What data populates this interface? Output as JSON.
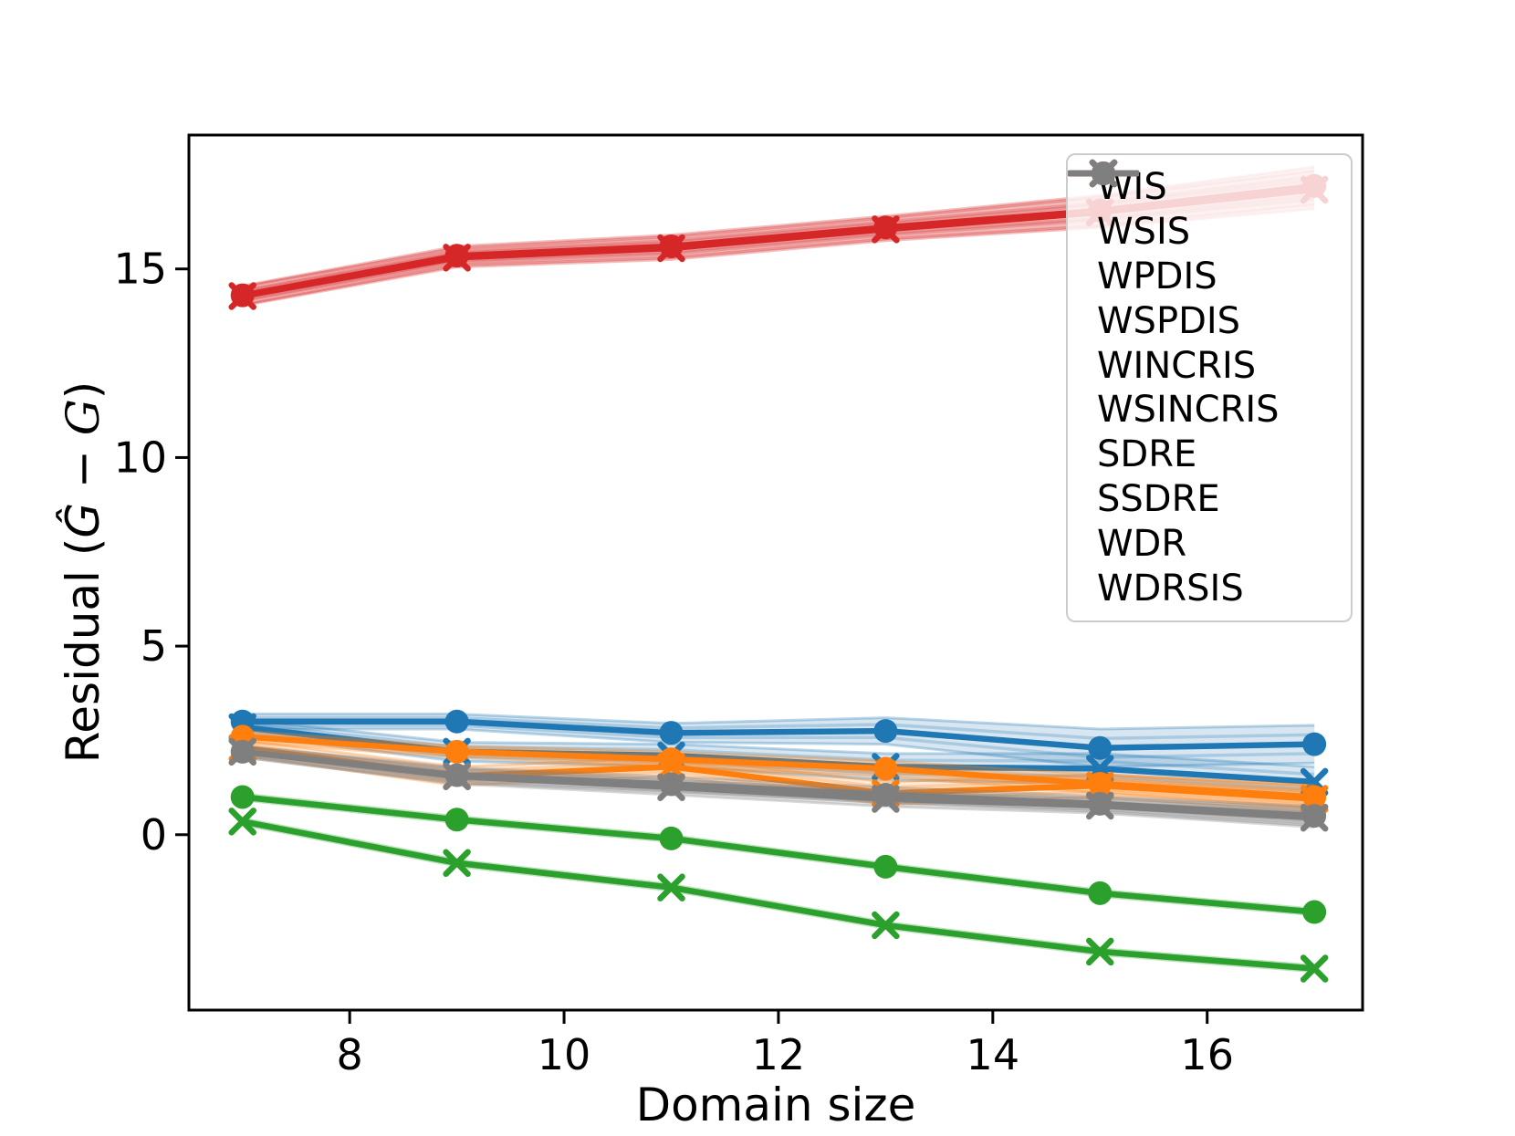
{
  "figure": {
    "xlabel": "Domain size",
    "ylabel_parts": {
      "prefix": "Residual (",
      "ghat": "Ĝ",
      "minus": " − ",
      "gcal": "G",
      "suffix": ")"
    }
  },
  "chart_data": {
    "type": "line",
    "title": "",
    "xlabel": "Domain size",
    "ylabel": "Residual (Ĝ − 𝒢)",
    "x": [
      7,
      9,
      11,
      13,
      15,
      17
    ],
    "xlim": [
      6.5,
      17.45
    ],
    "ylim": [
      -4.65,
      18.55
    ],
    "x_ticks": [
      8,
      10,
      12,
      14,
      16
    ],
    "y_ticks": [
      0,
      5,
      10,
      15
    ],
    "grid": false,
    "legend_position": "upper right",
    "series": [
      {
        "name": "WIS",
        "color": "#1f77b4",
        "marker": "circle",
        "values": [
          3.0,
          3.0,
          2.7,
          2.75,
          2.3,
          2.4
        ],
        "band": [
          0.2,
          0.2,
          0.25,
          0.35,
          0.5,
          0.5
        ]
      },
      {
        "name": "WSIS",
        "color": "#1f77b4",
        "marker": "x",
        "values": [
          2.85,
          2.2,
          2.1,
          1.8,
          1.75,
          1.4
        ],
        "band": [
          0.2,
          0.25,
          0.3,
          0.35,
          0.4,
          0.4
        ]
      },
      {
        "name": "WPDIS",
        "color": "#ff7f0e",
        "marker": "circle",
        "values": [
          2.6,
          2.2,
          2.0,
          1.75,
          1.35,
          1.0
        ],
        "band": [
          0.15,
          0.15,
          0.2,
          0.2,
          0.25,
          0.3
        ]
      },
      {
        "name": "WSPDIS",
        "color": "#ff7f0e",
        "marker": "x",
        "values": [
          2.3,
          1.55,
          1.8,
          1.1,
          1.3,
          0.95
        ],
        "band": [
          0.2,
          0.25,
          0.25,
          0.3,
          0.3,
          0.35
        ]
      },
      {
        "name": "WINCRIS",
        "color": "#2ca02c",
        "marker": "circle",
        "values": [
          1.0,
          0.4,
          -0.1,
          -0.85,
          -1.55,
          -2.05
        ],
        "band": [
          0.08,
          0.08,
          0.08,
          0.08,
          0.08,
          0.08
        ]
      },
      {
        "name": "WSINCRIS",
        "color": "#2ca02c",
        "marker": "x",
        "values": [
          0.35,
          -0.75,
          -1.4,
          -2.4,
          -3.1,
          -3.55
        ],
        "band": [
          0.08,
          0.08,
          0.08,
          0.08,
          0.08,
          0.08
        ]
      },
      {
        "name": "SDRE",
        "color": "#d62728",
        "marker": "circle",
        "values": [
          14.3,
          15.35,
          15.6,
          16.1,
          16.55,
          17.2
        ],
        "band": [
          0.25,
          0.25,
          0.3,
          0.3,
          0.4,
          0.5
        ]
      },
      {
        "name": "SSDRE",
        "color": "#d62728",
        "marker": "x",
        "values": [
          14.28,
          15.3,
          15.55,
          16.05,
          16.5,
          17.1
        ],
        "band": [
          0.25,
          0.25,
          0.3,
          0.3,
          0.4,
          0.5
        ]
      },
      {
        "name": "WDR",
        "color": "#7f7f7f",
        "marker": "circle",
        "values": [
          2.2,
          1.58,
          1.34,
          1.06,
          0.82,
          0.5
        ],
        "band": [
          0.15,
          0.2,
          0.2,
          0.2,
          0.2,
          0.25
        ]
      },
      {
        "name": "WDRSIS",
        "color": "#7f7f7f",
        "marker": "x",
        "values": [
          2.2,
          1.55,
          1.26,
          0.95,
          0.77,
          0.45
        ],
        "band": [
          0.15,
          0.2,
          0.2,
          0.2,
          0.2,
          0.25
        ]
      }
    ]
  }
}
